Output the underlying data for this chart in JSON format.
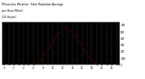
{
  "title_line1": "Milwaukee Weather  Solar Radiation Average",
  "title_line2": "per Hour W/m2",
  "title_line3": "(24 Hours)",
  "hours": [
    0,
    1,
    2,
    3,
    4,
    5,
    6,
    7,
    8,
    9,
    10,
    11,
    12,
    13,
    14,
    15,
    16,
    17,
    18,
    19,
    20,
    21,
    22,
    23
  ],
  "values": [
    0,
    0,
    0,
    0,
    0,
    0,
    5,
    35,
    110,
    220,
    340,
    460,
    550,
    560,
    490,
    390,
    280,
    160,
    60,
    10,
    0,
    0,
    0,
    0
  ],
  "line_color": "#ff0000",
  "bg_color": "#ffffff",
  "plot_bg": "#000000",
  "grid_color": "#555555",
  "ylim": [
    0,
    650
  ],
  "yticks": [
    0,
    100,
    200,
    300,
    400,
    500,
    600
  ],
  "xlim": [
    -0.5,
    23.5
  ],
  "xticks": [
    0,
    1,
    2,
    3,
    4,
    5,
    6,
    7,
    8,
    9,
    10,
    11,
    12,
    13,
    14,
    15,
    16,
    17,
    18,
    19,
    20,
    21,
    22,
    23
  ]
}
